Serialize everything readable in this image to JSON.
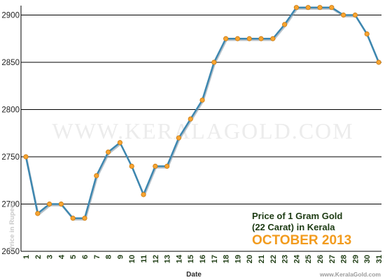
{
  "chart_data": {
    "type": "line",
    "title": "Price of 1 Gram Gold",
    "title_line2": "(22 Carat) in Kerala",
    "subtitle": "OCTOBER 2013",
    "xlabel": "Date",
    "ylabel": "Price in Rupees",
    "watermark": "WWW.KERALAGOLD.COM",
    "credit": "www.KeralaGold.com",
    "ylim": [
      2650,
      2910
    ],
    "yticks": [
      2650,
      2700,
      2750,
      2800,
      2850,
      2900
    ],
    "grid": true,
    "x": [
      "1",
      "2",
      "3",
      "4",
      "5",
      "6",
      "7",
      "8",
      "9",
      "10",
      "11",
      "12",
      "13",
      "14",
      "15",
      "16",
      "17",
      "18",
      "19",
      "20",
      "21",
      "22",
      "23",
      "24",
      "25",
      "26",
      "27",
      "28",
      "29",
      "30",
      "31"
    ],
    "series": [
      {
        "values": [
          2750,
          2690,
          2700,
          2700,
          2685,
          2685,
          2730,
          2755,
          2765,
          2740,
          2710,
          2740,
          2740,
          2770,
          2790,
          2810,
          2850,
          2875,
          2875,
          2875,
          2875,
          2875,
          2890,
          2908,
          2908,
          2908,
          2908,
          2900,
          2900,
          2880,
          2850
        ]
      }
    ],
    "colors": {
      "line": "#3d87b0",
      "line_shadow": "#8a9aa6",
      "marker": "#f7a431",
      "marker_edge": "#c97a10",
      "grid": "#000000"
    }
  }
}
